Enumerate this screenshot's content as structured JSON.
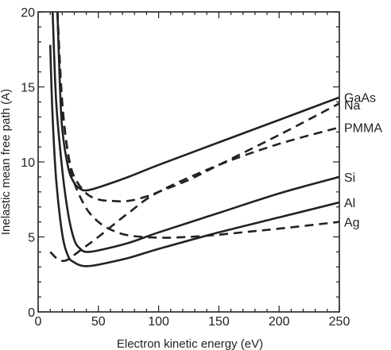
{
  "chart_data": {
    "type": "line",
    "title": "",
    "xlabel": "Electron kinetic energy (eV)",
    "ylabel": "Inelastic mean free path (A)",
    "xlim": [
      0,
      250
    ],
    "ylim": [
      0,
      20
    ],
    "xticks": [
      0,
      50,
      100,
      150,
      200,
      250
    ],
    "yticks": [
      0,
      5,
      10,
      15,
      20
    ],
    "grid": false,
    "legend": "series labels at right end of each curve",
    "series": [
      {
        "name": "GaAs",
        "style": "solid",
        "x": [
          16,
          18,
          20,
          25,
          30,
          35,
          40,
          50,
          75,
          100,
          150,
          200,
          250
        ],
        "y": [
          20,
          15.2,
          12.2,
          9.6,
          8.6,
          8.2,
          8.1,
          8.3,
          9.0,
          9.8,
          11.3,
          12.8,
          14.3
        ]
      },
      {
        "name": "Na",
        "style": "dashed",
        "x": [
          16,
          18,
          20,
          25,
          30,
          40,
          50,
          60,
          75,
          90,
          100,
          125,
          150,
          200,
          250
        ],
        "y": [
          20,
          16,
          13.5,
          10.5,
          9.0,
          7.9,
          7.5,
          7.4,
          7.4,
          7.7,
          8.0,
          8.8,
          9.8,
          11.8,
          13.9
        ]
      },
      {
        "name": "PMMA",
        "style": "dashed",
        "x": [
          10,
          15,
          20,
          25,
          30,
          40,
          50,
          75,
          100,
          150,
          200,
          250
        ],
        "y": [
          4.0,
          3.6,
          3.4,
          3.5,
          3.8,
          4.4,
          5.0,
          6.6,
          8.0,
          9.8,
          11.2,
          12.3
        ]
      },
      {
        "name": "Si",
        "style": "solid",
        "x": [
          12,
          15,
          20,
          25,
          30,
          35,
          40,
          50,
          75,
          100,
          150,
          200,
          250
        ],
        "y": [
          20,
          14,
          9.5,
          6.5,
          4.8,
          4.2,
          4.0,
          4.1,
          4.6,
          5.3,
          6.6,
          7.9,
          9.0
        ]
      },
      {
        "name": "Al",
        "style": "solid",
        "x": [
          10,
          12,
          15,
          20,
          25,
          30,
          35,
          40,
          50,
          75,
          100,
          150,
          200,
          250
        ],
        "y": [
          17.8,
          13,
          8.8,
          5.2,
          3.7,
          3.3,
          3.1,
          3.05,
          3.15,
          3.6,
          4.2,
          5.3,
          6.3,
          7.3
        ]
      },
      {
        "name": "Ag",
        "style": "dashed",
        "x": [
          16,
          20,
          25,
          30,
          40,
          50,
          60,
          75,
          100,
          125,
          150,
          175,
          200,
          250
        ],
        "y": [
          20,
          14.0,
          10.4,
          8.6,
          6.9,
          6.0,
          5.5,
          5.1,
          4.95,
          5.0,
          5.15,
          5.35,
          5.55,
          6.0
        ]
      }
    ]
  }
}
